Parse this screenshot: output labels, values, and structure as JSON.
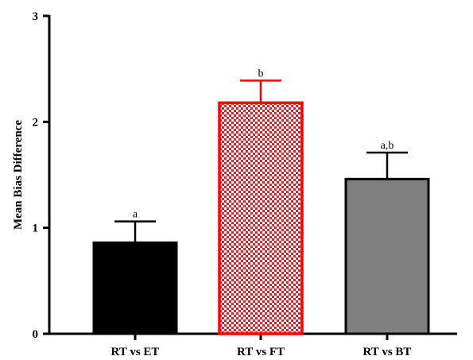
{
  "chart_data": {
    "type": "bar",
    "title": "",
    "xlabel": "",
    "ylabel": "Mean Bias Difference",
    "ylim": [
      0,
      3
    ],
    "yticks": [
      "0",
      "1",
      "2",
      "3"
    ],
    "categories": [
      "RT vs ET",
      "RT vs FT",
      "RT vs BT"
    ],
    "values": [
      0.86,
      2.18,
      1.46
    ],
    "error_upper": [
      1.06,
      2.39,
      1.71
    ],
    "significance_labels": [
      "a",
      "b",
      "a,b"
    ],
    "bar_styles": [
      {
        "fill": "#000000",
        "stroke": "#000000",
        "pattern": "solid"
      },
      {
        "fill": "#e02020",
        "stroke": "#ff0000",
        "pattern": "checkered"
      },
      {
        "fill": "#808080",
        "stroke": "#000000",
        "pattern": "solid"
      }
    ],
    "error_colors": [
      "#000000",
      "#ff0000",
      "#000000"
    ],
    "grid": false,
    "legend": "none"
  }
}
